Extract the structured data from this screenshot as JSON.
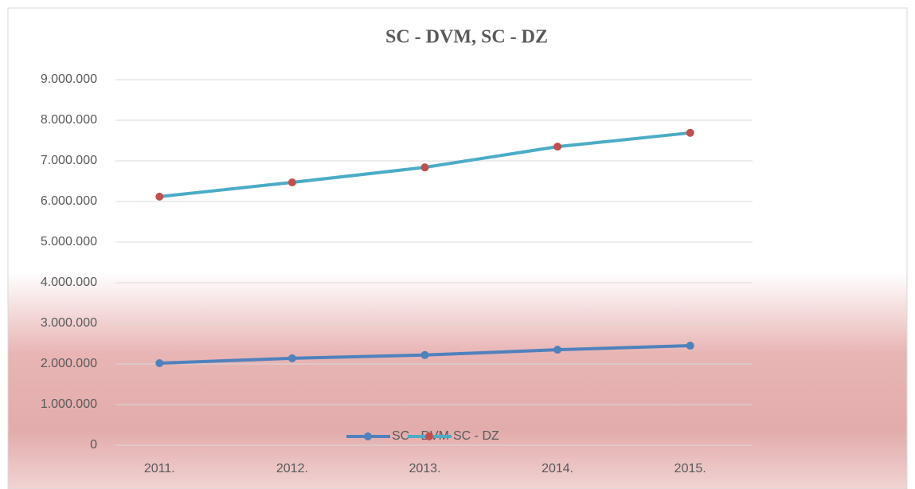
{
  "chart_data": {
    "type": "line",
    "title": "SC - DVM, SC - DZ",
    "categories": [
      "2011.",
      "2012.",
      "2013.",
      "2014.",
      "2015."
    ],
    "series": [
      {
        "name": "SC - DVM",
        "color": "#4f81bd",
        "marker_color": "#4f81bd",
        "values": [
          2020000,
          2140000,
          2220000,
          2350000,
          2450000
        ]
      },
      {
        "name": "SC - DZ",
        "color": "#4bacc6",
        "marker_color": "#c0504d",
        "values": [
          6120000,
          6470000,
          6840000,
          7350000,
          7690000
        ]
      }
    ],
    "ylim": [
      0,
      9000000
    ],
    "yticks": [
      0,
      {
        "value": 1000000,
        "label": "1.000.000"
      },
      {
        "value": 2000000,
        "label": "2.000.000"
      },
      {
        "value": 3000000,
        "label": "3.000.000"
      },
      {
        "value": 4000000,
        "label": "4.000.000"
      },
      {
        "value": 5000000,
        "label": "5.000.000"
      },
      {
        "value": 6000000,
        "label": "6.000.000"
      },
      {
        "value": 7000000,
        "label": "7.000.000"
      },
      {
        "value": 8000000,
        "label": "8.000.000"
      },
      {
        "value": 9000000,
        "label": "9.000.000"
      }
    ],
    "grid": true,
    "legend": "bottom"
  }
}
